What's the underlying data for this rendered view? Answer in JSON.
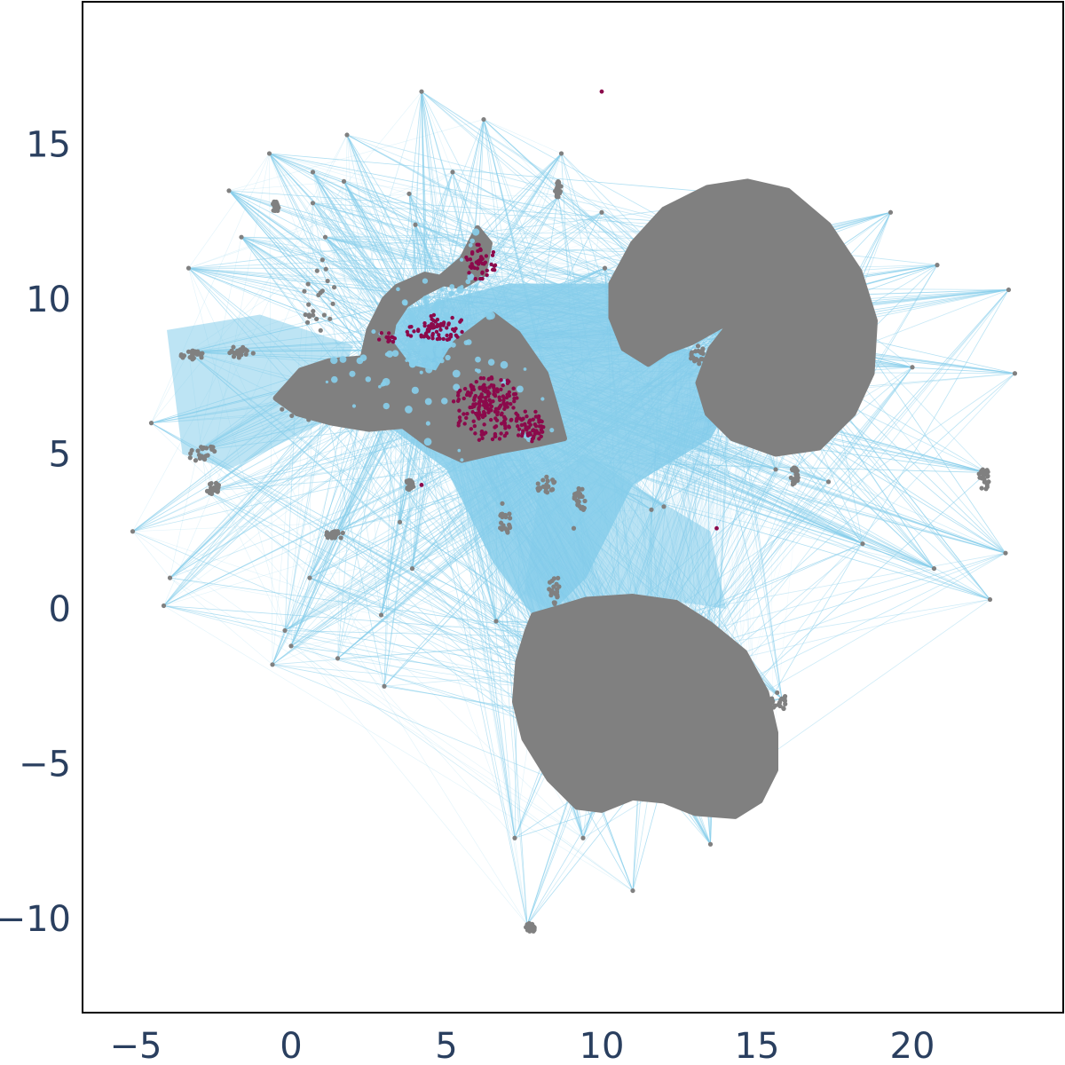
{
  "chart_data": {
    "type": "scatter",
    "title": "",
    "xlabel": "",
    "ylabel": "",
    "xlim": [
      -6.7,
      24.9
    ],
    "ylim": [
      -13.0,
      19.6
    ],
    "grid": false,
    "legend": null,
    "xticks": [
      -5,
      0,
      5,
      10,
      15,
      20
    ],
    "xtick_labels": [
      "−5",
      "0",
      "5",
      "10",
      "15",
      "20"
    ],
    "yticks": [
      -10,
      -5,
      0,
      5,
      10,
      15
    ],
    "ytick_labels": [
      "−10",
      "−5",
      "0",
      "5",
      "10",
      "15"
    ],
    "colors": {
      "points": "#808080",
      "highlight_points": "#8b0a4b",
      "edges": "#87ceeb",
      "axis_text": "#2a3f5f",
      "frame": "#000000"
    },
    "layers": [
      {
        "name": "edges",
        "kind": "line-segments",
        "color": "#87ceeb"
      },
      {
        "name": "nodes",
        "kind": "points",
        "color": "#808080"
      },
      {
        "name": "highlighted nodes",
        "kind": "points",
        "color": "#8b0a4b"
      }
    ],
    "clusters": [
      {
        "name": "left-cluster",
        "color": "#808080",
        "outline": [
          [
            -0.5,
            6.8
          ],
          [
            0.3,
            7.7
          ],
          [
            1.2,
            8.0
          ],
          [
            2.3,
            8.1
          ],
          [
            2.5,
            9.0
          ],
          [
            3.0,
            10.0
          ],
          [
            3.4,
            10.4
          ],
          [
            4.3,
            10.8
          ],
          [
            4.8,
            10.7
          ],
          [
            5.5,
            11.3
          ],
          [
            6.0,
            12.3
          ],
          [
            6.4,
            11.8
          ],
          [
            6.2,
            10.8
          ],
          [
            5.5,
            10.4
          ],
          [
            4.9,
            10.5
          ],
          [
            4.3,
            10.2
          ],
          [
            3.7,
            9.8
          ],
          [
            3.3,
            9.2
          ],
          [
            3.2,
            8.6
          ],
          [
            3.8,
            7.8
          ],
          [
            4.7,
            7.6
          ],
          [
            5.3,
            8.6
          ],
          [
            6.5,
            9.5
          ],
          [
            7.3,
            8.9
          ],
          [
            8.2,
            7.6
          ],
          [
            8.5,
            6.6
          ],
          [
            8.8,
            5.5
          ],
          [
            7.9,
            5.3
          ],
          [
            6.8,
            5.1
          ],
          [
            5.5,
            4.8
          ],
          [
            4.4,
            5.3
          ],
          [
            3.6,
            5.9
          ],
          [
            2.5,
            5.8
          ],
          [
            1.3,
            6.0
          ],
          [
            0.2,
            6.3
          ]
        ]
      },
      {
        "name": "upper-right-spiral-cluster",
        "color": "#808080",
        "outline": [
          [
            10.3,
            10.5
          ],
          [
            11.0,
            11.8
          ],
          [
            12.0,
            12.9
          ],
          [
            13.4,
            13.6
          ],
          [
            14.7,
            13.8
          ],
          [
            16.0,
            13.5
          ],
          [
            17.3,
            12.4
          ],
          [
            18.3,
            10.9
          ],
          [
            18.8,
            9.3
          ],
          [
            18.7,
            7.6
          ],
          [
            18.1,
            6.3
          ],
          [
            17.0,
            5.2
          ],
          [
            15.6,
            5.0
          ],
          [
            14.2,
            5.5
          ],
          [
            13.4,
            6.3
          ],
          [
            13.1,
            7.3
          ],
          [
            13.5,
            8.4
          ],
          [
            14.2,
            9.3
          ],
          [
            13.8,
            9.1
          ],
          [
            12.9,
            8.6
          ],
          [
            12.1,
            8.3
          ],
          [
            11.5,
            7.9
          ],
          [
            10.7,
            8.4
          ],
          [
            10.3,
            9.4
          ]
        ]
      },
      {
        "name": "lower-cluster",
        "color": "#808080",
        "outline": [
          [
            7.8,
            -0.2
          ],
          [
            8.5,
            0.0
          ],
          [
            9.5,
            0.3
          ],
          [
            11.0,
            0.4
          ],
          [
            12.4,
            0.2
          ],
          [
            13.5,
            -0.5
          ],
          [
            14.6,
            -1.4
          ],
          [
            15.3,
            -2.7
          ],
          [
            15.6,
            -4.0
          ],
          [
            15.6,
            -5.2
          ],
          [
            15.1,
            -6.2
          ],
          [
            14.3,
            -6.7
          ],
          [
            13.0,
            -6.6
          ],
          [
            12.0,
            -6.2
          ],
          [
            11.0,
            -6.1
          ],
          [
            10.0,
            -6.5
          ],
          [
            9.2,
            -6.4
          ],
          [
            8.3,
            -5.5
          ],
          [
            7.5,
            -4.2
          ],
          [
            7.2,
            -3.0
          ],
          [
            7.3,
            -1.7
          ],
          [
            7.6,
            -0.7
          ]
        ]
      }
    ],
    "highlight_regions": [
      {
        "center": [
          6.3,
          6.5
        ],
        "rx": 1.1,
        "ry": 1.1,
        "density": 190
      },
      {
        "center": [
          4.6,
          9.1
        ],
        "rx": 1.0,
        "ry": 0.5,
        "density": 70
      },
      {
        "center": [
          6.1,
          11.2
        ],
        "rx": 0.5,
        "ry": 0.6,
        "density": 45
      },
      {
        "center": [
          7.7,
          5.9
        ],
        "rx": 0.5,
        "ry": 0.5,
        "density": 60
      },
      {
        "center": [
          3.1,
          8.7
        ],
        "rx": 0.3,
        "ry": 0.3,
        "density": 12
      }
    ],
    "highlight_outliers": [
      [
        10.0,
        16.7
      ],
      [
        13.7,
        2.6
      ],
      [
        4.2,
        4.0
      ]
    ],
    "hub_points": [
      [
        -5.1,
        2.5
      ],
      [
        -4.5,
        6.0
      ],
      [
        -4.1,
        0.1
      ],
      [
        -3.9,
        1.0
      ],
      [
        -3.3,
        11.0
      ],
      [
        -3.3,
        8.3
      ],
      [
        -3.0,
        5.1
      ],
      [
        -2.7,
        3.8
      ],
      [
        -2.0,
        13.5
      ],
      [
        -1.6,
        12.0
      ],
      [
        -0.7,
        14.7
      ],
      [
        -0.6,
        -1.8
      ],
      [
        -0.2,
        -0.7
      ],
      [
        0.0,
        -1.2
      ],
      [
        0.7,
        14.1
      ],
      [
        0.7,
        13.1
      ],
      [
        0.6,
        1.0
      ],
      [
        1.1,
        12.0
      ],
      [
        1.5,
        2.5
      ],
      [
        1.5,
        -1.6
      ],
      [
        1.8,
        15.3
      ],
      [
        1.7,
        13.8
      ],
      [
        2.9,
        -0.2
      ],
      [
        3.0,
        -2.5
      ],
      [
        3.5,
        2.8
      ],
      [
        3.8,
        13.4
      ],
      [
        3.9,
        1.3
      ],
      [
        4.0,
        12.4
      ],
      [
        4.2,
        16.7
      ],
      [
        5.2,
        14.1
      ],
      [
        6.2,
        15.8
      ],
      [
        6.6,
        -0.4
      ],
      [
        6.8,
        3.4
      ],
      [
        8.7,
        14.7
      ],
      [
        8.6,
        13.3
      ],
      [
        10.0,
        12.8
      ],
      [
        10.1,
        11.0
      ],
      [
        9.1,
        2.6
      ],
      [
        11.6,
        3.2
      ],
      [
        7.2,
        -7.4
      ],
      [
        9.4,
        -7.4
      ],
      [
        11.0,
        -9.1
      ],
      [
        13.5,
        -7.6
      ],
      [
        7.6,
        -10.2
      ],
      [
        17.3,
        4.1
      ],
      [
        18.4,
        2.1
      ],
      [
        19.3,
        12.8
      ],
      [
        20.8,
        11.1
      ],
      [
        23.1,
        10.3
      ],
      [
        23.3,
        7.6
      ],
      [
        22.4,
        4.4
      ],
      [
        22.5,
        0.3
      ],
      [
        23.0,
        1.8
      ],
      [
        20.7,
        1.3
      ],
      [
        15.8,
        -2.9
      ],
      [
        12.0,
        3.3
      ],
      [
        15.6,
        4.5
      ],
      [
        20.0,
        7.8
      ]
    ],
    "edge_density": "very high (hundreds of thousands of translucent segments)"
  }
}
